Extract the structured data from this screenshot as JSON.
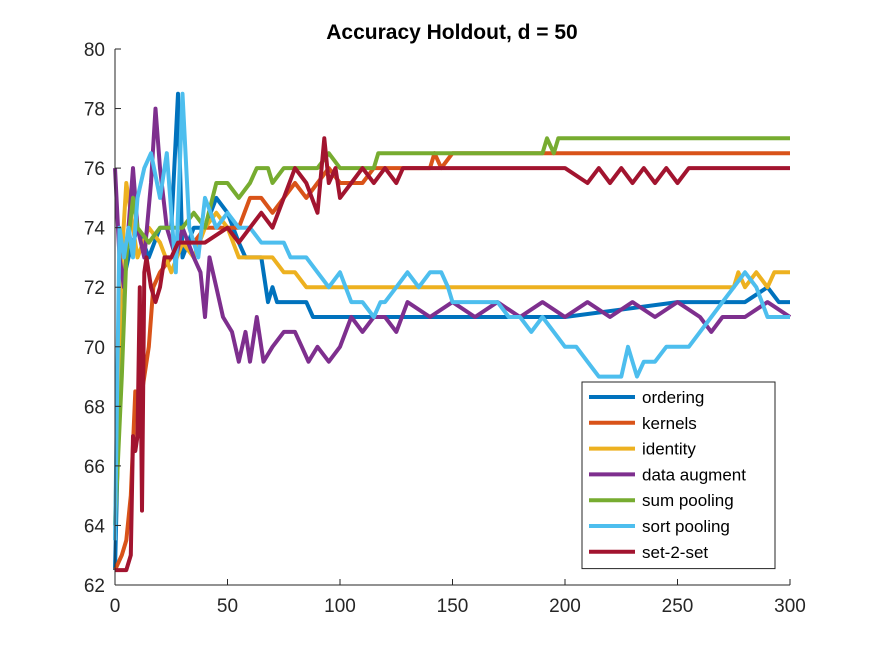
{
  "chart_data": {
    "type": "line",
    "title": "Accuracy Holdout, d = 50",
    "xlabel": "",
    "ylabel": "",
    "xlim": [
      0,
      300
    ],
    "ylim": [
      62,
      80
    ],
    "xticks": [
      0,
      50,
      100,
      150,
      200,
      250,
      300
    ],
    "yticks": [
      62,
      64,
      66,
      68,
      70,
      72,
      74,
      76,
      78,
      80
    ],
    "grid": false,
    "legend_position": "lower-right",
    "series": [
      {
        "name": "ordering",
        "color": "#0072BD",
        "points": [
          [
            0,
            62.5
          ],
          [
            3,
            72
          ],
          [
            6,
            73
          ],
          [
            10,
            74
          ],
          [
            15,
            73
          ],
          [
            20,
            74
          ],
          [
            25,
            74
          ],
          [
            28,
            78.5
          ],
          [
            30,
            73
          ],
          [
            35,
            74
          ],
          [
            40,
            74
          ],
          [
            45,
            75
          ],
          [
            50,
            74.5
          ],
          [
            55,
            73.5
          ],
          [
            58,
            73
          ],
          [
            65,
            73
          ],
          [
            68,
            71.5
          ],
          [
            70,
            72
          ],
          [
            72,
            71.5
          ],
          [
            85,
            71.5
          ],
          [
            88,
            71
          ],
          [
            100,
            71
          ],
          [
            150,
            71
          ],
          [
            200,
            71
          ],
          [
            250,
            71.5
          ],
          [
            280,
            71.5
          ],
          [
            290,
            72
          ],
          [
            295,
            71.5
          ],
          [
            300,
            71.5
          ]
        ]
      },
      {
        "name": "kernels",
        "color": "#D95319",
        "points": [
          [
            0,
            62.5
          ],
          [
            3,
            63
          ],
          [
            5,
            63.5
          ],
          [
            7,
            65
          ],
          [
            9,
            68.5
          ],
          [
            11,
            68
          ],
          [
            13,
            69
          ],
          [
            15,
            70
          ],
          [
            17,
            72
          ],
          [
            20,
            72.5
          ],
          [
            25,
            73
          ],
          [
            30,
            73.5
          ],
          [
            35,
            73.5
          ],
          [
            40,
            74
          ],
          [
            45,
            74
          ],
          [
            55,
            74
          ],
          [
            60,
            75
          ],
          [
            65,
            75
          ],
          [
            70,
            74.5
          ],
          [
            75,
            75
          ],
          [
            80,
            75.5
          ],
          [
            85,
            75
          ],
          [
            90,
            75.5
          ],
          [
            95,
            76
          ],
          [
            100,
            75.5
          ],
          [
            110,
            75.5
          ],
          [
            115,
            76
          ],
          [
            120,
            76
          ],
          [
            130,
            76
          ],
          [
            140,
            76
          ],
          [
            142,
            76.5
          ],
          [
            145,
            76
          ],
          [
            150,
            76.5
          ],
          [
            200,
            76.5
          ],
          [
            250,
            76.5
          ],
          [
            300,
            76.5
          ]
        ]
      },
      {
        "name": "identity",
        "color": "#EDB120",
        "points": [
          [
            0,
            64
          ],
          [
            3,
            73
          ],
          [
            5,
            75.5
          ],
          [
            8,
            74
          ],
          [
            10,
            73
          ],
          [
            15,
            74
          ],
          [
            20,
            73.5
          ],
          [
            25,
            72.5
          ],
          [
            30,
            73.5
          ],
          [
            35,
            73
          ],
          [
            40,
            74
          ],
          [
            45,
            74.5
          ],
          [
            50,
            74
          ],
          [
            55,
            73
          ],
          [
            60,
            73
          ],
          [
            70,
            73
          ],
          [
            75,
            72.5
          ],
          [
            80,
            72.5
          ],
          [
            85,
            72
          ],
          [
            100,
            72
          ],
          [
            150,
            72
          ],
          [
            200,
            72
          ],
          [
            250,
            72
          ],
          [
            275,
            72
          ],
          [
            277,
            72.5
          ],
          [
            280,
            72
          ],
          [
            285,
            72.5
          ],
          [
            290,
            72
          ],
          [
            293,
            72.5
          ],
          [
            300,
            72.5
          ]
        ]
      },
      {
        "name": "data augment",
        "color": "#7E2F8E",
        "points": [
          [
            0,
            76
          ],
          [
            2,
            73
          ],
          [
            4,
            72
          ],
          [
            6,
            74
          ],
          [
            8,
            76
          ],
          [
            10,
            74
          ],
          [
            13,
            73
          ],
          [
            16,
            75.5
          ],
          [
            18,
            78
          ],
          [
            20,
            76
          ],
          [
            23,
            74
          ],
          [
            27,
            73
          ],
          [
            30,
            74
          ],
          [
            35,
            73
          ],
          [
            38,
            72.5
          ],
          [
            40,
            71
          ],
          [
            42,
            73
          ],
          [
            45,
            72
          ],
          [
            48,
            71
          ],
          [
            52,
            70.5
          ],
          [
            55,
            69.5
          ],
          [
            58,
            70.5
          ],
          [
            60,
            69.5
          ],
          [
            63,
            71
          ],
          [
            66,
            69.5
          ],
          [
            70,
            70
          ],
          [
            75,
            70.5
          ],
          [
            80,
            70.5
          ],
          [
            83,
            70
          ],
          [
            86,
            69.5
          ],
          [
            90,
            70
          ],
          [
            95,
            69.5
          ],
          [
            100,
            70
          ],
          [
            105,
            71
          ],
          [
            110,
            70.5
          ],
          [
            115,
            71
          ],
          [
            120,
            71
          ],
          [
            125,
            70.5
          ],
          [
            130,
            71.5
          ],
          [
            140,
            71
          ],
          [
            150,
            71.5
          ],
          [
            160,
            71
          ],
          [
            170,
            71.5
          ],
          [
            180,
            71
          ],
          [
            190,
            71.5
          ],
          [
            200,
            71
          ],
          [
            210,
            71.5
          ],
          [
            220,
            71
          ],
          [
            230,
            71.5
          ],
          [
            240,
            71
          ],
          [
            250,
            71.5
          ],
          [
            260,
            71
          ],
          [
            265,
            70.5
          ],
          [
            270,
            71
          ],
          [
            280,
            71
          ],
          [
            290,
            71.5
          ],
          [
            300,
            71
          ]
        ]
      },
      {
        "name": "sum pooling",
        "color": "#77AC30",
        "points": [
          [
            0,
            64
          ],
          [
            3,
            69
          ],
          [
            5,
            73
          ],
          [
            8,
            75
          ],
          [
            10,
            74
          ],
          [
            15,
            73.5
          ],
          [
            20,
            74
          ],
          [
            25,
            74
          ],
          [
            30,
            74
          ],
          [
            35,
            74.5
          ],
          [
            40,
            74
          ],
          [
            45,
            75.5
          ],
          [
            50,
            75.5
          ],
          [
            55,
            75
          ],
          [
            60,
            75.5
          ],
          [
            63,
            76
          ],
          [
            68,
            76
          ],
          [
            70,
            75.5
          ],
          [
            75,
            76
          ],
          [
            85,
            76
          ],
          [
            90,
            76
          ],
          [
            95,
            76.5
          ],
          [
            100,
            76
          ],
          [
            105,
            76
          ],
          [
            110,
            76
          ],
          [
            115,
            76
          ],
          [
            117,
            76.5
          ],
          [
            120,
            76.5
          ],
          [
            150,
            76.5
          ],
          [
            190,
            76.5
          ],
          [
            192,
            77
          ],
          [
            195,
            76.5
          ],
          [
            197,
            77
          ],
          [
            250,
            77
          ],
          [
            300,
            77
          ]
        ]
      },
      {
        "name": "sort pooling",
        "color": "#4DBEEE",
        "points": [
          [
            0,
            63.5
          ],
          [
            2,
            74
          ],
          [
            4,
            73
          ],
          [
            6,
            74
          ],
          [
            8,
            73
          ],
          [
            10,
            75
          ],
          [
            13,
            76
          ],
          [
            16,
            76.5
          ],
          [
            20,
            75
          ],
          [
            23,
            76.5
          ],
          [
            27,
            72.5
          ],
          [
            30,
            78.5
          ],
          [
            33,
            74
          ],
          [
            37,
            73
          ],
          [
            40,
            75
          ],
          [
            45,
            74
          ],
          [
            50,
            74.5
          ],
          [
            55,
            74
          ],
          [
            60,
            74
          ],
          [
            65,
            73.5
          ],
          [
            70,
            73.5
          ],
          [
            75,
            73.5
          ],
          [
            78,
            73
          ],
          [
            85,
            73
          ],
          [
            90,
            72.5
          ],
          [
            95,
            72
          ],
          [
            100,
            72.5
          ],
          [
            105,
            71.5
          ],
          [
            110,
            71.5
          ],
          [
            115,
            71
          ],
          [
            118,
            71.5
          ],
          [
            120,
            71.5
          ],
          [
            125,
            72
          ],
          [
            130,
            72.5
          ],
          [
            135,
            72
          ],
          [
            140,
            72.5
          ],
          [
            145,
            72.5
          ],
          [
            148,
            72
          ],
          [
            150,
            71.5
          ],
          [
            155,
            71.5
          ],
          [
            160,
            71.5
          ],
          [
            170,
            71.5
          ],
          [
            175,
            71
          ],
          [
            180,
            71
          ],
          [
            185,
            70.5
          ],
          [
            190,
            71
          ],
          [
            195,
            70.5
          ],
          [
            200,
            70
          ],
          [
            205,
            70
          ],
          [
            210,
            69.5
          ],
          [
            215,
            69
          ],
          [
            225,
            69
          ],
          [
            228,
            70
          ],
          [
            232,
            69
          ],
          [
            235,
            69.5
          ],
          [
            240,
            69.5
          ],
          [
            245,
            70
          ],
          [
            250,
            70
          ],
          [
            255,
            70
          ],
          [
            260,
            70.5
          ],
          [
            265,
            71
          ],
          [
            270,
            71.5
          ],
          [
            275,
            72
          ],
          [
            280,
            72.5
          ],
          [
            285,
            72
          ],
          [
            290,
            71
          ],
          [
            295,
            71
          ],
          [
            300,
            71
          ]
        ]
      },
      {
        "name": "set-2-set",
        "color": "#A2142F",
        "points": [
          [
            0,
            62.5
          ],
          [
            5,
            62.5
          ],
          [
            7,
            63
          ],
          [
            8,
            67
          ],
          [
            9,
            66.5
          ],
          [
            10,
            67
          ],
          [
            11,
            72
          ],
          [
            12,
            64.5
          ],
          [
            13,
            72.5
          ],
          [
            14,
            73
          ],
          [
            16,
            72
          ],
          [
            18,
            71.5
          ],
          [
            20,
            72
          ],
          [
            22,
            73
          ],
          [
            25,
            73
          ],
          [
            28,
            73.5
          ],
          [
            32,
            73.5
          ],
          [
            35,
            73.5
          ],
          [
            40,
            73.5
          ],
          [
            50,
            74
          ],
          [
            55,
            73.5
          ],
          [
            60,
            74
          ],
          [
            65,
            74.5
          ],
          [
            70,
            74
          ],
          [
            75,
            75
          ],
          [
            80,
            76
          ],
          [
            85,
            75.5
          ],
          [
            90,
            74.5
          ],
          [
            93,
            77
          ],
          [
            95,
            75.5
          ],
          [
            98,
            76
          ],
          [
            100,
            75
          ],
          [
            105,
            75.5
          ],
          [
            110,
            76
          ],
          [
            115,
            75.5
          ],
          [
            120,
            76
          ],
          [
            125,
            75.5
          ],
          [
            128,
            76
          ],
          [
            130,
            76
          ],
          [
            150,
            76
          ],
          [
            200,
            76
          ],
          [
            210,
            75.5
          ],
          [
            215,
            76
          ],
          [
            220,
            75.5
          ],
          [
            225,
            76
          ],
          [
            230,
            75.5
          ],
          [
            235,
            76
          ],
          [
            240,
            75.5
          ],
          [
            245,
            76
          ],
          [
            250,
            75.5
          ],
          [
            255,
            76
          ],
          [
            260,
            76
          ],
          [
            300,
            76
          ]
        ]
      }
    ]
  }
}
